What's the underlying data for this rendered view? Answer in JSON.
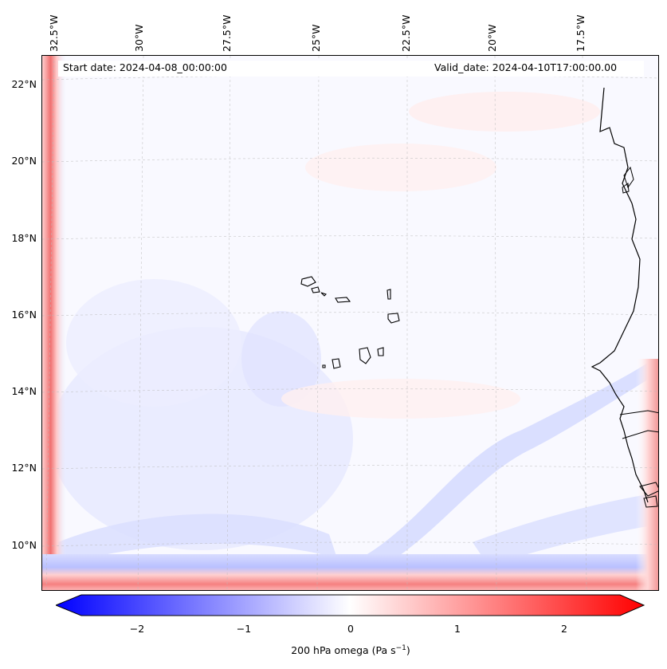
{
  "map": {
    "start_date": "Start date: 2024-04-08_00:00:00",
    "valid_date": "Valid_date: 2024-04-10T17:00:00.00",
    "lon_labels": [
      "32.5°W",
      "30°W",
      "27.5°W",
      "25°W",
      "22.5°W",
      "20°W",
      "17.5°W"
    ],
    "lat_labels": [
      "22°N",
      "20°N",
      "18°N",
      "16°N",
      "14°N",
      "12°N",
      "10°N"
    ]
  },
  "colorbar": {
    "ticks": [
      "−2",
      "−1",
      "0",
      "1",
      "2"
    ],
    "label_main": "200 hPa omega (Pa s",
    "label_sup": "−1",
    "label_end": ")",
    "min_color": "#0000ff",
    "mid_color": "#ffffff",
    "max_color": "#ff0000"
  }
}
